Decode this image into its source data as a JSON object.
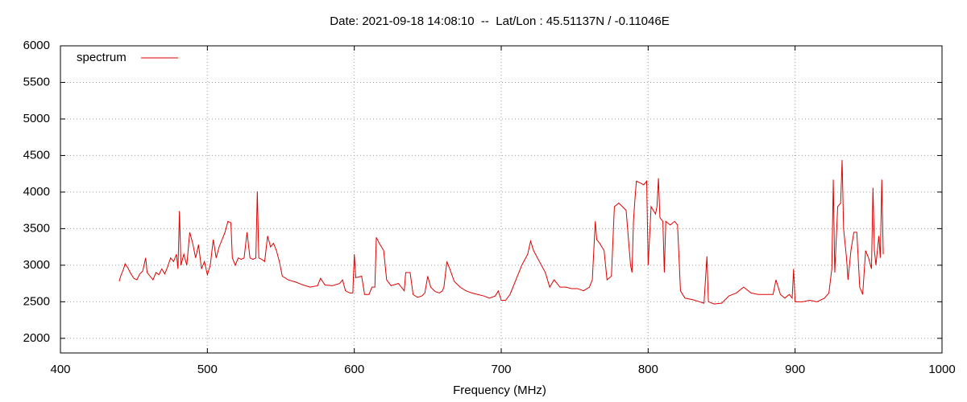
{
  "chart_data": {
    "type": "line",
    "title": "Date: 2021-09-18 14:08:10  --  Lat/Lon : 45.51137N / -0.11046E",
    "x_label": "Frequency (MHz)",
    "xlim": [
      400,
      1000
    ],
    "xticks": [
      400,
      500,
      600,
      700,
      800,
      900,
      1000
    ],
    "ylim": [
      1800,
      6000
    ],
    "yticks": [
      2000,
      2500,
      3000,
      3500,
      4000,
      4500,
      5000,
      5500,
      6000
    ],
    "grid": true,
    "legend": "upper left",
    "x": [
      440,
      441,
      443,
      444,
      446,
      448,
      450,
      452,
      454,
      456,
      458,
      459,
      461,
      463,
      465,
      467,
      469,
      471,
      473,
      475,
      477,
      479,
      480,
      481,
      482,
      484,
      486,
      488,
      490,
      492,
      494,
      496,
      498,
      500,
      502,
      504,
      506,
      508,
      510,
      512,
      514,
      516,
      517,
      519,
      521,
      523,
      525,
      527,
      529,
      531,
      533,
      534,
      535,
      537,
      539,
      541,
      543,
      545,
      547,
      549,
      551,
      555,
      560,
      565,
      570,
      575,
      577,
      580,
      585,
      590,
      592,
      594,
      597,
      599,
      600,
      601,
      605,
      607,
      610,
      612,
      614,
      615,
      617,
      620,
      622,
      625,
      630,
      634,
      635,
      638,
      640,
      643,
      646,
      648,
      650,
      652,
      655,
      658,
      660,
      661,
      663,
      665,
      668,
      672,
      676,
      680,
      684,
      688,
      692,
      696,
      698,
      700,
      703,
      706,
      710,
      714,
      718,
      720,
      722,
      726,
      730,
      733,
      736,
      740,
      744,
      748,
      752,
      756,
      760,
      762,
      764,
      765,
      767,
      770,
      772,
      775,
      777,
      780,
      785,
      788,
      789,
      790,
      791,
      792,
      795,
      797,
      799,
      800,
      802,
      805,
      806,
      807,
      808,
      810,
      811,
      812,
      815,
      818,
      820,
      822,
      825,
      830,
      835,
      838,
      840,
      841,
      845,
      850,
      855,
      860,
      865,
      870,
      875,
      880,
      885,
      887,
      890,
      893,
      896,
      898,
      899,
      900,
      905,
      910,
      915,
      920,
      923,
      925,
      926,
      927,
      929,
      931,
      932,
      933,
      935,
      936,
      938,
      940,
      942,
      944,
      946,
      948,
      950,
      952,
      953,
      954,
      955,
      957,
      958,
      959,
      960
    ],
    "series": [
      {
        "name": "spectrum",
        "color": "#e00000",
        "values": [
          2780,
          2850,
          2950,
          3020,
          2960,
          2880,
          2820,
          2800,
          2880,
          2920,
          3100,
          2900,
          2850,
          2800,
          2900,
          2870,
          2950,
          2880,
          2980,
          3100,
          3050,
          3150,
          2950,
          3740,
          3000,
          3150,
          3000,
          3450,
          3300,
          3100,
          3280,
          2950,
          3050,
          2870,
          3000,
          3350,
          3100,
          3250,
          3350,
          3450,
          3600,
          3580,
          3100,
          3000,
          3100,
          3080,
          3100,
          3450,
          3100,
          3080,
          3100,
          4010,
          3100,
          3080,
          3050,
          3400,
          3250,
          3300,
          3200,
          3050,
          2850,
          2800,
          2770,
          2730,
          2700,
          2720,
          2820,
          2730,
          2720,
          2750,
          2800,
          2650,
          2620,
          2620,
          3150,
          2830,
          2850,
          2600,
          2600,
          2700,
          2700,
          3380,
          3300,
          3200,
          2800,
          2720,
          2750,
          2650,
          2900,
          2900,
          2600,
          2560,
          2580,
          2620,
          2850,
          2700,
          2640,
          2620,
          2650,
          2700,
          3050,
          2950,
          2780,
          2700,
          2650,
          2620,
          2600,
          2580,
          2550,
          2580,
          2650,
          2520,
          2520,
          2600,
          2800,
          3000,
          3150,
          3330,
          3200,
          3050,
          2900,
          2700,
          2800,
          2700,
          2700,
          2680,
          2680,
          2650,
          2700,
          2800,
          3600,
          3350,
          3300,
          3200,
          2800,
          2850,
          3800,
          3850,
          3750,
          3000,
          2900,
          3600,
          3900,
          4150,
          4120,
          4100,
          4150,
          3000,
          3800,
          3700,
          3800,
          4190,
          3650,
          3600,
          2900,
          3600,
          3550,
          3600,
          3550,
          2650,
          2550,
          2530,
          2500,
          2480,
          3120,
          2500,
          2470,
          2480,
          2580,
          2620,
          2700,
          2620,
          2600,
          2600,
          2600,
          2800,
          2600,
          2550,
          2600,
          2550,
          2950,
          2500,
          2500,
          2520,
          2500,
          2550,
          2620,
          2950,
          4170,
          2900,
          3800,
          3850,
          4440,
          3500,
          3100,
          2800,
          3200,
          3450,
          3450,
          2700,
          2600,
          3200,
          3100,
          2950,
          4060,
          3200,
          3000,
          3400,
          3100,
          4170,
          3150
        ]
      }
    ]
  }
}
